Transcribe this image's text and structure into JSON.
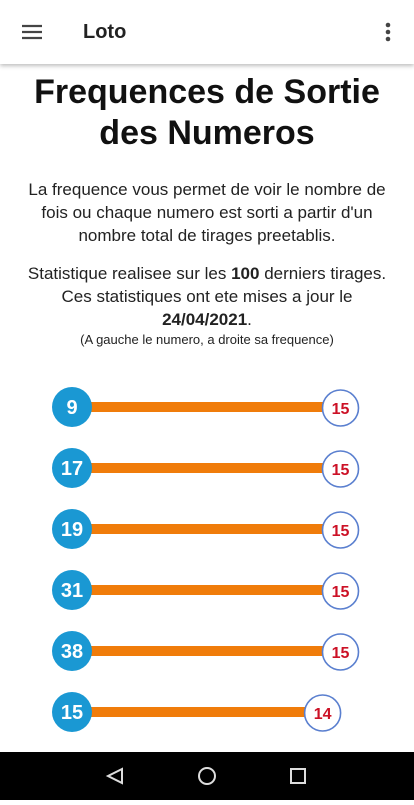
{
  "app_bar": {
    "title": "Loto"
  },
  "heading": "Frequences de Sortie des Numeros",
  "intro": "La frequence vous permet de voir le nombre de fois ou chaque numero est sorti a partir d'un nombre total de tirages preetablis.",
  "stats": {
    "prefix": "Statistique realisee sur les",
    "draw_count": 100,
    "suffix": "derniers tirages.",
    "update_prefix": "Ces statistiques ont ete mises a jour le",
    "update_date": "24/04/2021",
    "update_suffix": ".",
    "note": "(A gauche le numero, a droite sa frequence)"
  },
  "rows": [
    {
      "number": 9,
      "frequency": 15
    },
    {
      "number": 17,
      "frequency": 15
    },
    {
      "number": 19,
      "frequency": 15
    },
    {
      "number": 31,
      "frequency": 15
    },
    {
      "number": 38,
      "frequency": 15
    },
    {
      "number": 15,
      "frequency": 14
    }
  ]
}
